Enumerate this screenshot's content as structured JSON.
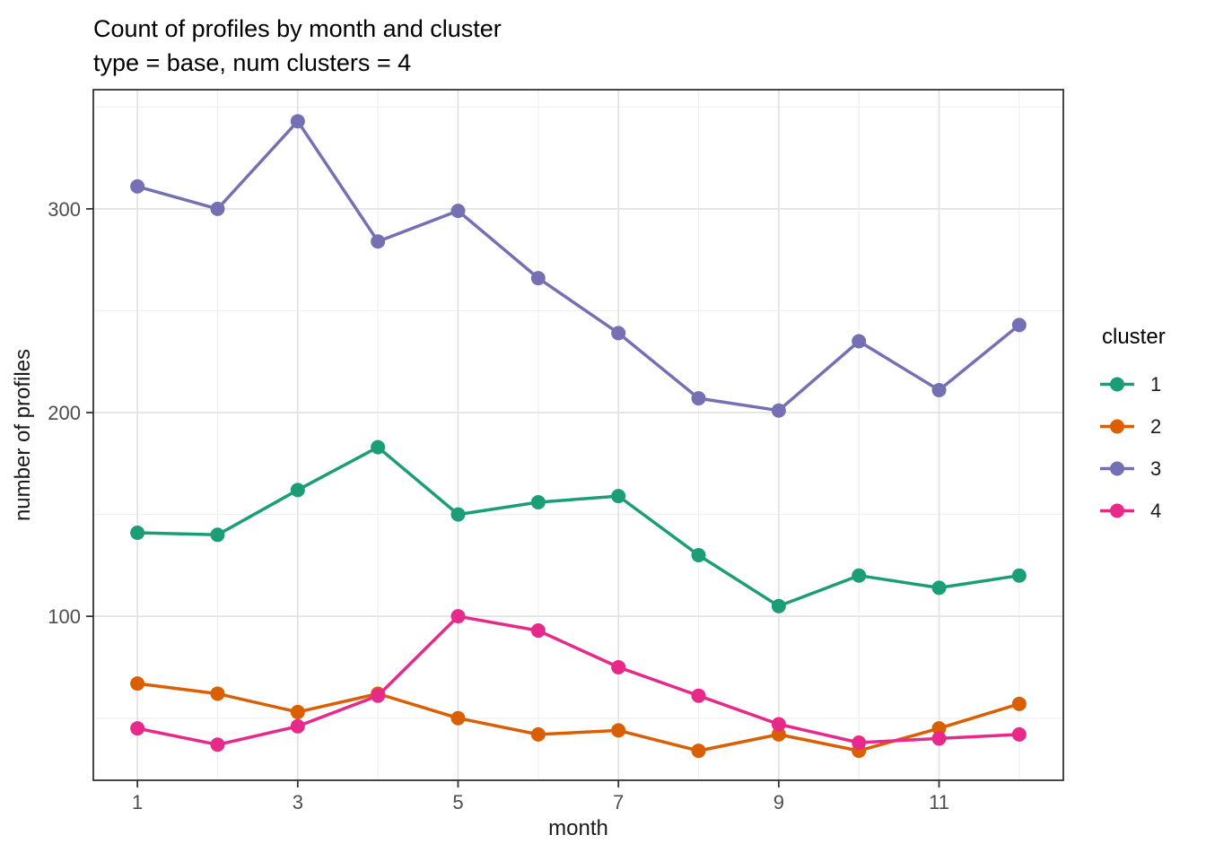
{
  "title": "Count of profiles by month and cluster",
  "subtitle": "type = base, num clusters = 4",
  "legend": {
    "title": "cluster"
  },
  "chart_data": {
    "type": "line",
    "title": "Count of profiles by month and cluster",
    "subtitle": "type = base, num clusters = 4",
    "xlabel": "month",
    "ylabel": "number of profiles",
    "x": [
      1,
      2,
      3,
      4,
      5,
      6,
      7,
      8,
      9,
      10,
      11,
      12
    ],
    "x_major_ticks": [
      1,
      3,
      5,
      7,
      9,
      11
    ],
    "x_minor_ticks": [
      2,
      4,
      6,
      8,
      10,
      12
    ],
    "y_major_ticks": [
      100,
      200,
      300
    ],
    "y_minor_ticks": [
      50,
      150,
      250,
      350
    ],
    "xlim": [
      0.45,
      12.55
    ],
    "ylim": [
      19.5,
      358.5
    ],
    "grid": true,
    "legend_position": "right",
    "legend_title": "cluster",
    "panel_border_color": "#333333",
    "grid_major_color": "#e3e3e3",
    "grid_minor_color": "#f0f0f0",
    "tick_label_color": "#4d4d4d",
    "series": [
      {
        "name": "1",
        "color": "#1B9E77",
        "values": [
          141,
          140,
          162,
          183,
          150,
          156,
          159,
          130,
          105,
          120,
          114,
          120
        ]
      },
      {
        "name": "2",
        "color": "#D95F02",
        "values": [
          67,
          62,
          53,
          62,
          50,
          42,
          44,
          34,
          42,
          34,
          45,
          57
        ]
      },
      {
        "name": "3",
        "color": "#7570B3",
        "values": [
          311,
          300,
          343,
          284,
          299,
          266,
          239,
          207,
          201,
          235,
          211,
          243
        ]
      },
      {
        "name": "4",
        "color": "#E7298A",
        "values": [
          45,
          37,
          46,
          61,
          100,
          93,
          75,
          61,
          47,
          38,
          40,
          42
        ]
      }
    ]
  }
}
